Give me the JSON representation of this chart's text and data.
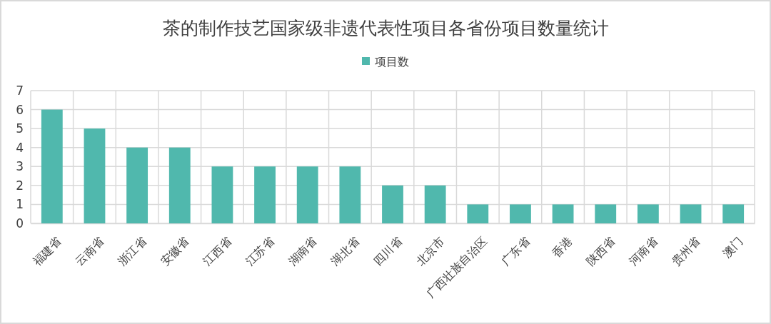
{
  "chart_data": {
    "type": "bar",
    "title": "茶的制作技艺国家级非遗代表性项目各省份项目数量统计",
    "categories": [
      "福建省",
      "云南省",
      "浙江省",
      "安徽省",
      "江西省",
      "江苏省",
      "湖南省",
      "湖北省",
      "四川省",
      "北京市",
      "广西壮族自治区",
      "广东省",
      "香港",
      "陕西省",
      "河南省",
      "贵州省",
      "澳门"
    ],
    "series": [
      {
        "name": "项目数",
        "color": "#50b8ad",
        "values": [
          6,
          5,
          4,
          4,
          3,
          3,
          3,
          3,
          2,
          2,
          1,
          1,
          1,
          1,
          1,
          1,
          1
        ]
      }
    ],
    "ylim": [
      0,
      7
    ],
    "yticks": [
      0,
      1,
      2,
      3,
      4,
      5,
      6,
      7
    ],
    "grid": true,
    "legend": "top"
  }
}
